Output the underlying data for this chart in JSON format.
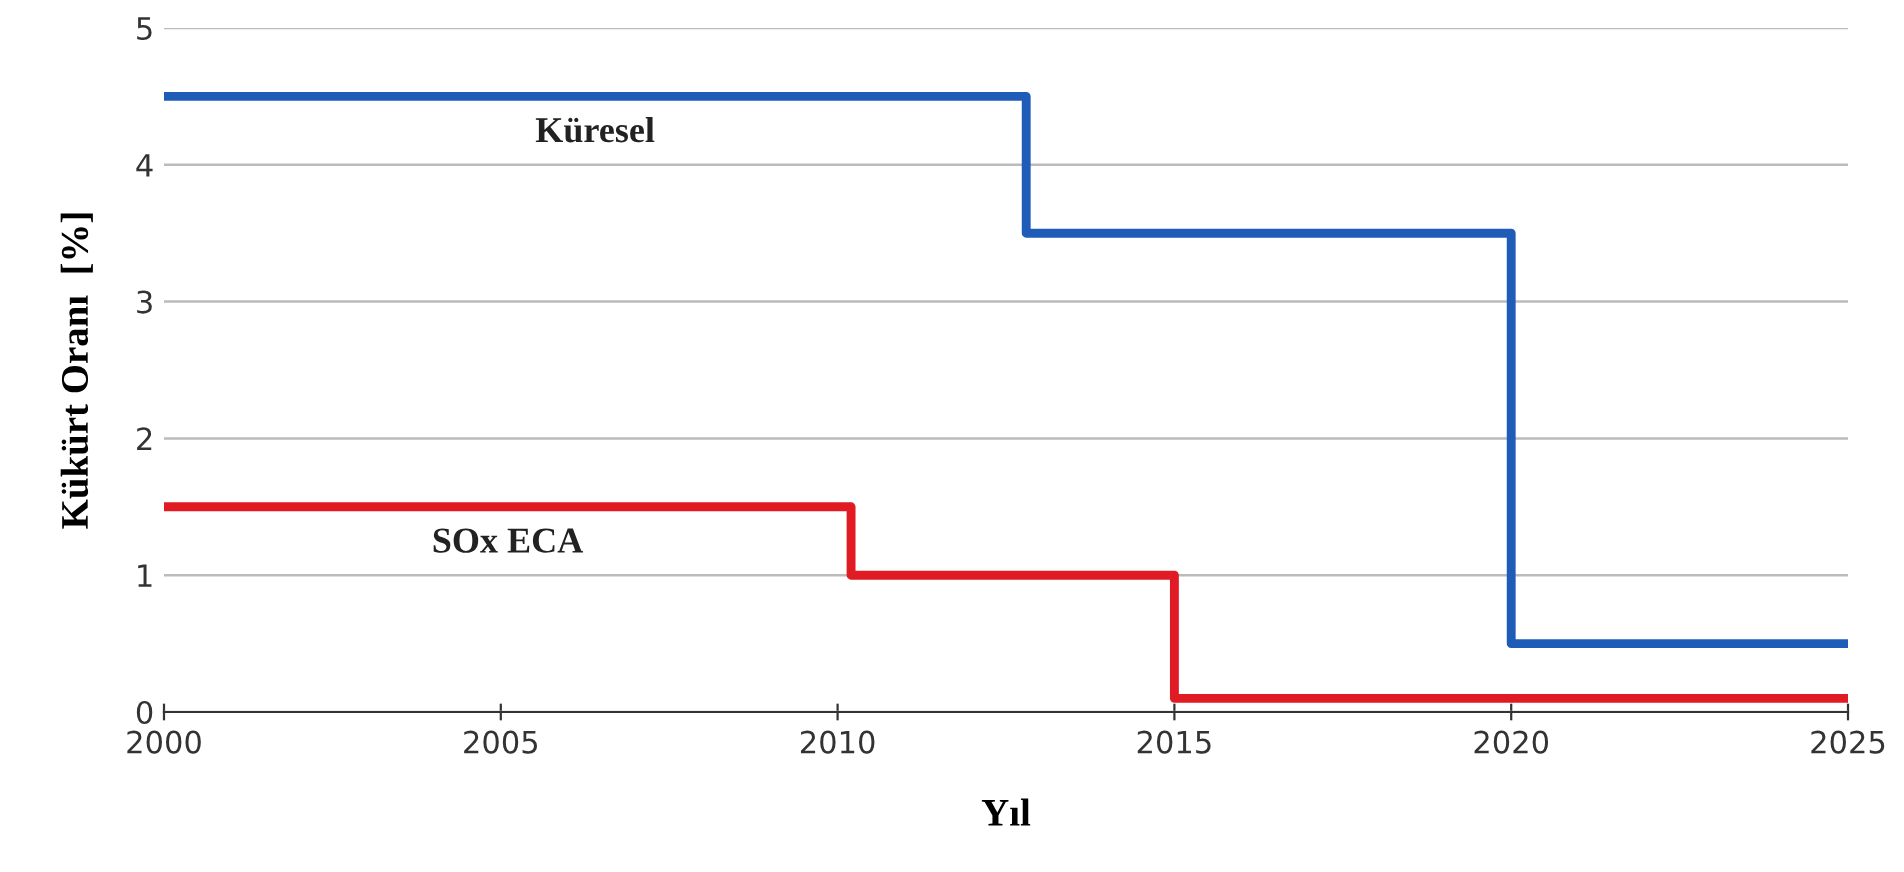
{
  "chart_data": {
    "type": "step",
    "xlabel": "Yıl",
    "ylabel": "Kükürt Oranı  [%]",
    "series": [
      {
        "name": "Küresel",
        "color": "#1f5cb8",
        "x": [
          2000,
          2012.8,
          2020,
          2025
        ],
        "values": [
          4.5,
          3.5,
          0.5,
          0.5
        ]
      },
      {
        "name": "SOx ECA",
        "color": "#e01b24",
        "x": [
          2000,
          2010.2,
          2015,
          2025
        ],
        "values": [
          1.5,
          1.0,
          0.1,
          0.1
        ]
      }
    ],
    "xlim": [
      2000,
      2025
    ],
    "xticks": [
      2000,
      2005,
      2010,
      2015,
      2020,
      2025
    ],
    "ylim": [
      0,
      5
    ],
    "yticks": [
      0,
      1,
      2,
      3,
      4,
      5
    ],
    "grid": "y",
    "legend": false
  }
}
